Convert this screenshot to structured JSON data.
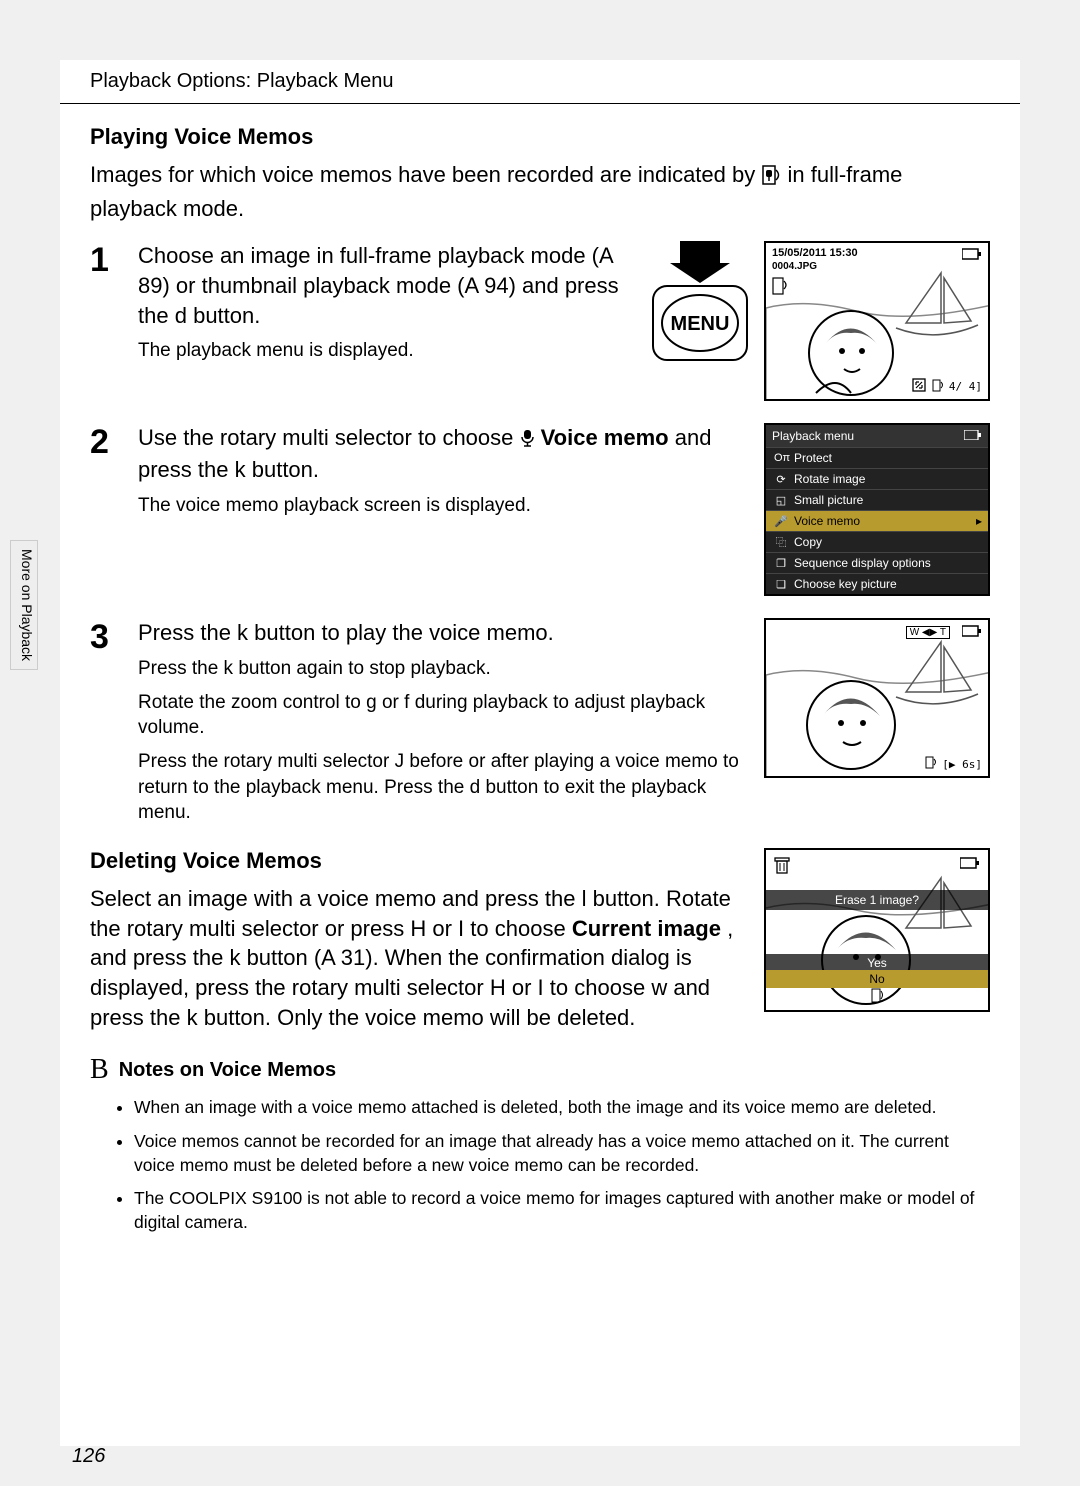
{
  "page": {
    "breadcrumb": "Playback Options: Playback Menu",
    "side_tab": "More on Playback",
    "page_number": "126"
  },
  "playing": {
    "heading": "Playing Voice Memos",
    "intro_a": "Images for which voice memos have been recorded are indicated by ",
    "intro_b": " in full-frame playback mode."
  },
  "step1": {
    "num": "1",
    "title_a": "Choose an image in full-frame playback mode (",
    "title_b": "89) or thumbnail playback mode (",
    "title_c": "94) and press the ",
    "title_d": " button.",
    "ref_icon": "A",
    "menu_btn": "d",
    "note": "The playback menu is displayed.",
    "menu_label": "MENU",
    "lcd": {
      "datetime": "15/05/2011 15:30",
      "filename": "0004.JPG",
      "counter": "4/   4]",
      "zoom_icon": "⤢"
    }
  },
  "step2": {
    "num": "2",
    "title_a": "Use the rotary multi selector to choose ",
    "title_bold": " Voice memo",
    "title_b": " and press the ",
    "ok_btn": "k",
    "title_c": " button.",
    "note": "The voice memo playback screen is displayed.",
    "menu": {
      "title": "Playback menu",
      "items": [
        "Protect",
        "Rotate image",
        "Small picture",
        "Voice memo",
        "Copy",
        "Sequence display options",
        "Choose key picture"
      ],
      "selected_index": 3,
      "icons": [
        "Oπ",
        "⟳",
        "◱",
        "🎤",
        "⿻",
        "❐",
        "❏"
      ],
      "bg": "#2a2a2a",
      "highlight": "#b89b2f"
    }
  },
  "step3": {
    "num": "3",
    "title_a": "Press the ",
    "ok_btn": "k",
    "title_b": " button to play the voice memo.",
    "note1_a": "Press the ",
    "note1_b": " button again to stop playback.",
    "note2_a": "Rotate the zoom control to ",
    "zoom_t": "g",
    "note2_b": " or ",
    "zoom_w": "f",
    "note2_c": " during playback to adjust playback volume.",
    "note3_a": "Press the rotary multi selector ",
    "left_btn": "J",
    "note3_b": " before or after playing a voice memo to return to the playback menu. Press the ",
    "menu_btn": "d",
    "note3_c": " button to exit the playback menu.",
    "lcd": {
      "wt_label": "W ◀▶ T",
      "duration": "[▶   6s]"
    }
  },
  "deleting": {
    "heading": "Deleting Voice Memos",
    "body_a": "Select an image with a voice memo and press the ",
    "del_btn": "l",
    "body_b": " button. Rotate the rotary multi selector or press ",
    "up_btn": "H",
    "body_c": " or ",
    "down_btn": "I",
    "body_d": " to choose ",
    "bold": "Current image",
    "body_e": ", and press the ",
    "ok_btn": "k",
    "body_f": " button (",
    "ref_icon": "A",
    "ref_page": "31). When the confirmation dialog is displayed, press the rotary multi selector ",
    "body_g": " or ",
    "body_h": " to choose ",
    "vm_sym": "w",
    "body_i": " and press the ",
    "body_j": " button. Only the voice memo will be deleted.",
    "erase": {
      "banner": "Erase 1 image?",
      "yes": "Yes",
      "no": "No"
    }
  },
  "notes": {
    "icon": "B",
    "heading": "Notes on Voice Memos",
    "items": [
      "When an image with a voice memo attached is deleted, both the image and its voice memo are deleted.",
      "Voice memos cannot be recorded for an image that already has a voice memo attached on it. The current voice memo must be deleted before a new voice memo can be recorded.",
      "The COOLPIX S9100 is not able to record a voice memo for images captured with another make or model of digital camera."
    ]
  },
  "colors": {
    "page_bg": "#f0f0f0",
    "text": "#000000"
  }
}
